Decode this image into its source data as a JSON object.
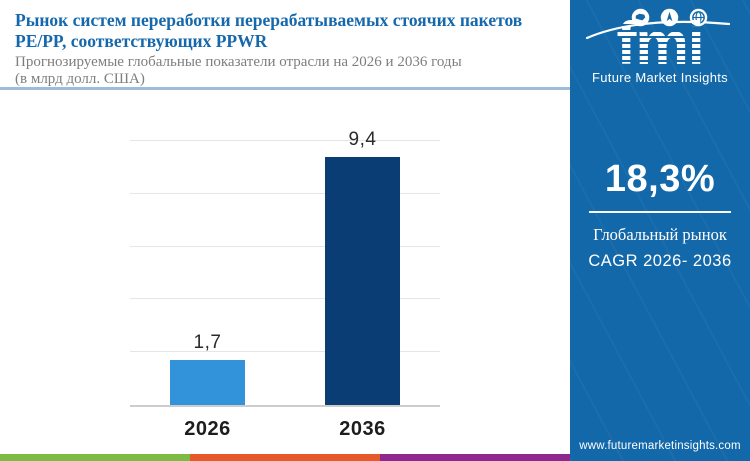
{
  "header": {
    "title": "Рынок систем переработки перерабатываемых стоячих пакетов PE/PP, соответствующих PPWR",
    "subtitle_line1": "Прогнозируемые глобальные показатели отрасли на 2026 и 2036 годы",
    "subtitle_line2": "(в млрд долл. США)",
    "title_color": "#1668ad"
  },
  "chart_data": {
    "type": "bar",
    "categories": [
      "2026",
      "2036"
    ],
    "values": [
      1.7,
      9.4
    ],
    "value_labels": [
      "1,7",
      "9,4"
    ],
    "bar_colors": [
      "#3293db",
      "#0a3d73"
    ],
    "title": "Рынок систем переработки перерабатываемых стоячих пакетов PE/PP, соответствующих PPWR",
    "subtitle": "Прогнозируемые глобальные показатели отрасли на 2026 и 2036 годы (в млрд долл. США)",
    "xlabel": "",
    "ylabel": "млрд долл. США",
    "ylim": [
      0,
      10
    ],
    "grid_step": 2,
    "grid": true,
    "legend": false
  },
  "sidebar": {
    "bg_color": "#1368a9",
    "logo_word": "fmi",
    "logo_subtext": "Future Market Insights",
    "logo_icons": [
      "map-icon",
      "compass-icon",
      "globe-icon"
    ],
    "stat_value": "18,3%",
    "stat_label_line1": "Глобальный рынок",
    "stat_label_line2": "CAGR 2026- 2036",
    "website": "www.futuremarketinsights.com"
  },
  "footer": {
    "stripe_colors": [
      "#7dbb42",
      "#e55a28",
      "#90278e"
    ]
  }
}
